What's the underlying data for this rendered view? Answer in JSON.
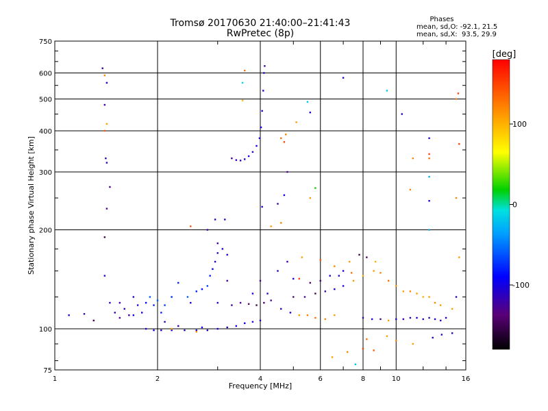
{
  "chart_data": {
    "type": "scatter",
    "title": "Tromsø 20170630 21:40:00–21:41:43",
    "subtitle": "RwPretec (8p)",
    "xlabel": "Frequency [MHz]",
    "ylabel": "Stationary phase Virtual Height [km]",
    "x_scale": "log",
    "y_scale": "log",
    "xlim": [
      1,
      16
    ],
    "ylim": [
      75,
      750
    ],
    "x_ticks": [
      1,
      2,
      4,
      6,
      8,
      10,
      16
    ],
    "x_tick_labels": [
      "1",
      "2",
      "4",
      "6",
      "8",
      "10",
      "16"
    ],
    "y_ticks": [
      75,
      100,
      200,
      300,
      400,
      500,
      600,
      750
    ],
    "y_tick_labels": [
      "75",
      "100",
      "200",
      "300",
      "400",
      "500",
      "600",
      "750"
    ],
    "grid": true,
    "stats": {
      "heading": "Phases",
      "line1": "mean, sd,O: -92.1, 21.5",
      "line2": "mean, sd,X:  93.5, 29.9"
    },
    "colorbar": {
      "label": "[deg]",
      "range": [
        -180,
        180
      ],
      "ticks": [
        100,
        0,
        -100
      ],
      "tick_labels": [
        "100",
        "0",
        "-100"
      ]
    },
    "series": [
      {
        "points": [
          [
            1.1,
            110,
            -110
          ],
          [
            1.22,
            111,
            -120
          ],
          [
            1.3,
            106,
            -150
          ],
          [
            1.38,
            620,
            -120
          ],
          [
            1.4,
            590,
            120
          ],
          [
            1.42,
            560,
            -100
          ],
          [
            1.4,
            480,
            -120
          ],
          [
            1.42,
            420,
            110
          ],
          [
            1.4,
            400,
            140
          ],
          [
            1.41,
            330,
            -115
          ],
          [
            1.42,
            320,
            -110
          ],
          [
            1.45,
            270,
            -130
          ],
          [
            1.42,
            232,
            -130
          ],
          [
            1.4,
            190,
            -150
          ],
          [
            1.4,
            145,
            -110
          ],
          [
            1.45,
            120,
            -110
          ],
          [
            1.5,
            112,
            -120
          ],
          [
            1.55,
            108,
            -130
          ],
          [
            1.6,
            115,
            -110
          ],
          [
            1.65,
            110,
            -120
          ],
          [
            1.7,
            125,
            -110
          ],
          [
            1.75,
            118,
            -110
          ],
          [
            1.8,
            112,
            -100
          ],
          [
            1.85,
            120,
            -90
          ],
          [
            1.9,
            125,
            -60
          ],
          [
            1.95,
            118,
            -80
          ],
          [
            2.0,
            122,
            -60
          ],
          [
            2.05,
            112,
            -80
          ],
          [
            2.1,
            118,
            -70
          ],
          [
            2.2,
            125,
            -80
          ],
          [
            2.3,
            138,
            -80
          ],
          [
            2.45,
            125,
            -60
          ],
          [
            2.6,
            130,
            -80
          ],
          [
            2.7,
            132,
            -90
          ],
          [
            2.8,
            135,
            -70
          ],
          [
            2.85,
            145,
            -80
          ],
          [
            2.9,
            152,
            -90
          ],
          [
            2.95,
            160,
            -100
          ],
          [
            3.0,
            170,
            -110
          ],
          [
            3.0,
            182,
            -120
          ],
          [
            3.1,
            175,
            -110
          ],
          [
            3.2,
            168,
            -100
          ],
          [
            2.95,
            215,
            -110
          ],
          [
            3.15,
            215,
            -110
          ],
          [
            2.8,
            200,
            -120
          ],
          [
            1.85,
            100,
            -100
          ],
          [
            1.95,
            99,
            -100
          ],
          [
            2.05,
            99,
            -110
          ],
          [
            2.2,
            99,
            -100
          ],
          [
            2.4,
            99,
            -110
          ],
          [
            2.6,
            99,
            -100
          ],
          [
            2.8,
            99,
            -110
          ],
          [
            3.0,
            100,
            -100
          ],
          [
            3.2,
            101,
            -110
          ],
          [
            3.4,
            102,
            -100
          ],
          [
            3.6,
            104,
            -90
          ],
          [
            3.8,
            105,
            -110
          ],
          [
            4.0,
            106,
            -110
          ],
          [
            2.3,
            102,
            -120
          ],
          [
            2.7,
            101,
            -100
          ],
          [
            3.3,
            330,
            -120
          ],
          [
            3.4,
            326,
            -110
          ],
          [
            3.5,
            325,
            -120
          ],
          [
            3.6,
            328,
            -110
          ],
          [
            3.7,
            335,
            -100
          ],
          [
            3.8,
            345,
            -110
          ],
          [
            3.9,
            360,
            -100
          ],
          [
            3.98,
            380,
            -110
          ],
          [
            4.02,
            410,
            -100
          ],
          [
            4.05,
            460,
            -110
          ],
          [
            4.08,
            530,
            -100
          ],
          [
            4.1,
            600,
            -110
          ],
          [
            4.12,
            630,
            -120
          ],
          [
            4.05,
            235,
            -110
          ],
          [
            4.5,
            240,
            -120
          ],
          [
            4.7,
            255,
            -100
          ],
          [
            4.8,
            300,
            -130
          ],
          [
            3.3,
            118,
            -120
          ],
          [
            3.5,
            120,
            -130
          ],
          [
            3.7,
            119,
            -140
          ],
          [
            3.9,
            118,
            -150
          ],
          [
            4.1,
            120,
            -140
          ],
          [
            4.3,
            122,
            -130
          ],
          [
            4.6,
            115,
            -110
          ],
          [
            4.9,
            112,
            -100
          ],
          [
            5.2,
            110,
            110
          ],
          [
            5.5,
            110,
            120
          ],
          [
            5.8,
            108,
            130
          ],
          [
            6.2,
            107,
            120
          ],
          [
            6.6,
            110,
            110
          ],
          [
            5.0,
            125,
            -140
          ],
          [
            5.4,
            125,
            -130
          ],
          [
            5.8,
            128,
            -150
          ],
          [
            6.2,
            130,
            -120
          ],
          [
            6.6,
            132,
            -100
          ],
          [
            6.8,
            145,
            -110
          ],
          [
            7.0,
            150,
            -100
          ],
          [
            5.2,
            142,
            150
          ],
          [
            5.6,
            138,
            -140
          ],
          [
            6.0,
            140,
            -130
          ],
          [
            6.4,
            145,
            -110
          ],
          [
            7.0,
            135,
            -100
          ],
          [
            7.5,
            140,
            110
          ],
          [
            8.0,
            145,
            100
          ],
          [
            8.6,
            150,
            110
          ],
          [
            9.0,
            148,
            120
          ],
          [
            9.5,
            140,
            130
          ],
          [
            10.0,
            135,
            110
          ],
          [
            10.5,
            130,
            110
          ],
          [
            11.0,
            130,
            120
          ],
          [
            11.5,
            128,
            110
          ],
          [
            12.0,
            125,
            100
          ],
          [
            12.5,
            125,
            110
          ],
          [
            13.0,
            120,
            120
          ],
          [
            13.5,
            118,
            110
          ],
          [
            8.0,
            108,
            -120
          ],
          [
            8.5,
            107,
            -110
          ],
          [
            9.0,
            107,
            -130
          ],
          [
            9.5,
            106,
            110
          ],
          [
            10.0,
            107,
            -110
          ],
          [
            10.5,
            107,
            -120
          ],
          [
            11.0,
            108,
            -110
          ],
          [
            11.5,
            108,
            -100
          ],
          [
            12.0,
            107,
            -110
          ],
          [
            12.5,
            108,
            -120
          ],
          [
            13.0,
            107,
            -110
          ],
          [
            13.5,
            106,
            -120
          ],
          [
            14.0,
            108,
            -110
          ],
          [
            7.0,
            580,
            -110
          ],
          [
            7.8,
            168,
            -150
          ],
          [
            8.2,
            165,
            -140
          ],
          [
            8.7,
            160,
            100
          ],
          [
            9.4,
            530,
            -20
          ],
          [
            10.4,
            450,
            -110
          ],
          [
            11.2,
            330,
            120
          ],
          [
            11.0,
            265,
            120
          ],
          [
            12.5,
            340,
            150
          ],
          [
            12.5,
            330,
            130
          ],
          [
            12.5,
            380,
            -110
          ],
          [
            12.5,
            290,
            -30
          ],
          [
            12.5,
            245,
            -100
          ],
          [
            12.5,
            200,
            -30
          ],
          [
            15.2,
            520,
            150
          ],
          [
            15.0,
            500,
            120
          ],
          [
            15.3,
            365,
            150
          ],
          [
            15.0,
            250,
            120
          ],
          [
            15.3,
            165,
            110
          ],
          [
            14.6,
            115,
            110
          ],
          [
            15.0,
            125,
            -110
          ],
          [
            3.6,
            610,
            130
          ],
          [
            3.55,
            560,
            -10
          ],
          [
            3.55,
            495,
            100
          ],
          [
            4.6,
            380,
            130
          ],
          [
            4.7,
            370,
            150
          ],
          [
            4.75,
            390,
            120
          ],
          [
            5.1,
            425,
            110
          ],
          [
            5.5,
            490,
            -20
          ],
          [
            5.6,
            455,
            -110
          ],
          [
            5.8,
            268,
            20
          ],
          [
            5.6,
            250,
            110
          ],
          [
            4.3,
            205,
            110
          ],
          [
            4.6,
            210,
            120
          ],
          [
            2.5,
            205,
            140
          ],
          [
            6.5,
            82,
            110
          ],
          [
            7.2,
            85,
            120
          ],
          [
            7.6,
            78,
            -20
          ],
          [
            8.0,
            87,
            150
          ],
          [
            8.2,
            93,
            130
          ],
          [
            8.6,
            86,
            140
          ],
          [
            9.4,
            95,
            110
          ],
          [
            10.0,
            92,
            120
          ],
          [
            11.2,
            90,
            110
          ],
          [
            12.8,
            94,
            -110
          ],
          [
            13.6,
            96,
            -110
          ],
          [
            14.6,
            97,
            -110
          ],
          [
            2.2,
            100,
            110
          ],
          [
            2.6,
            98,
            120
          ],
          [
            4.5,
            150,
            -110
          ],
          [
            4.8,
            160,
            -120
          ],
          [
            5.3,
            165,
            110
          ],
          [
            6.0,
            162,
            140
          ],
          [
            6.6,
            155,
            120
          ],
          [
            7.3,
            160,
            110
          ],
          [
            7.4,
            148,
            130
          ],
          [
            4.0,
            140,
            -130
          ],
          [
            3.8,
            128,
            -100
          ],
          [
            4.2,
            128,
            -110
          ],
          [
            5.0,
            142,
            -100
          ],
          [
            3.0,
            120,
            -100
          ],
          [
            3.2,
            140,
            -120
          ],
          [
            2.5,
            120,
            -100
          ],
          [
            2.1,
            105,
            -110
          ],
          [
            1.7,
            110,
            -100
          ],
          [
            1.55,
            120,
            -120
          ]
        ]
      }
    ]
  }
}
